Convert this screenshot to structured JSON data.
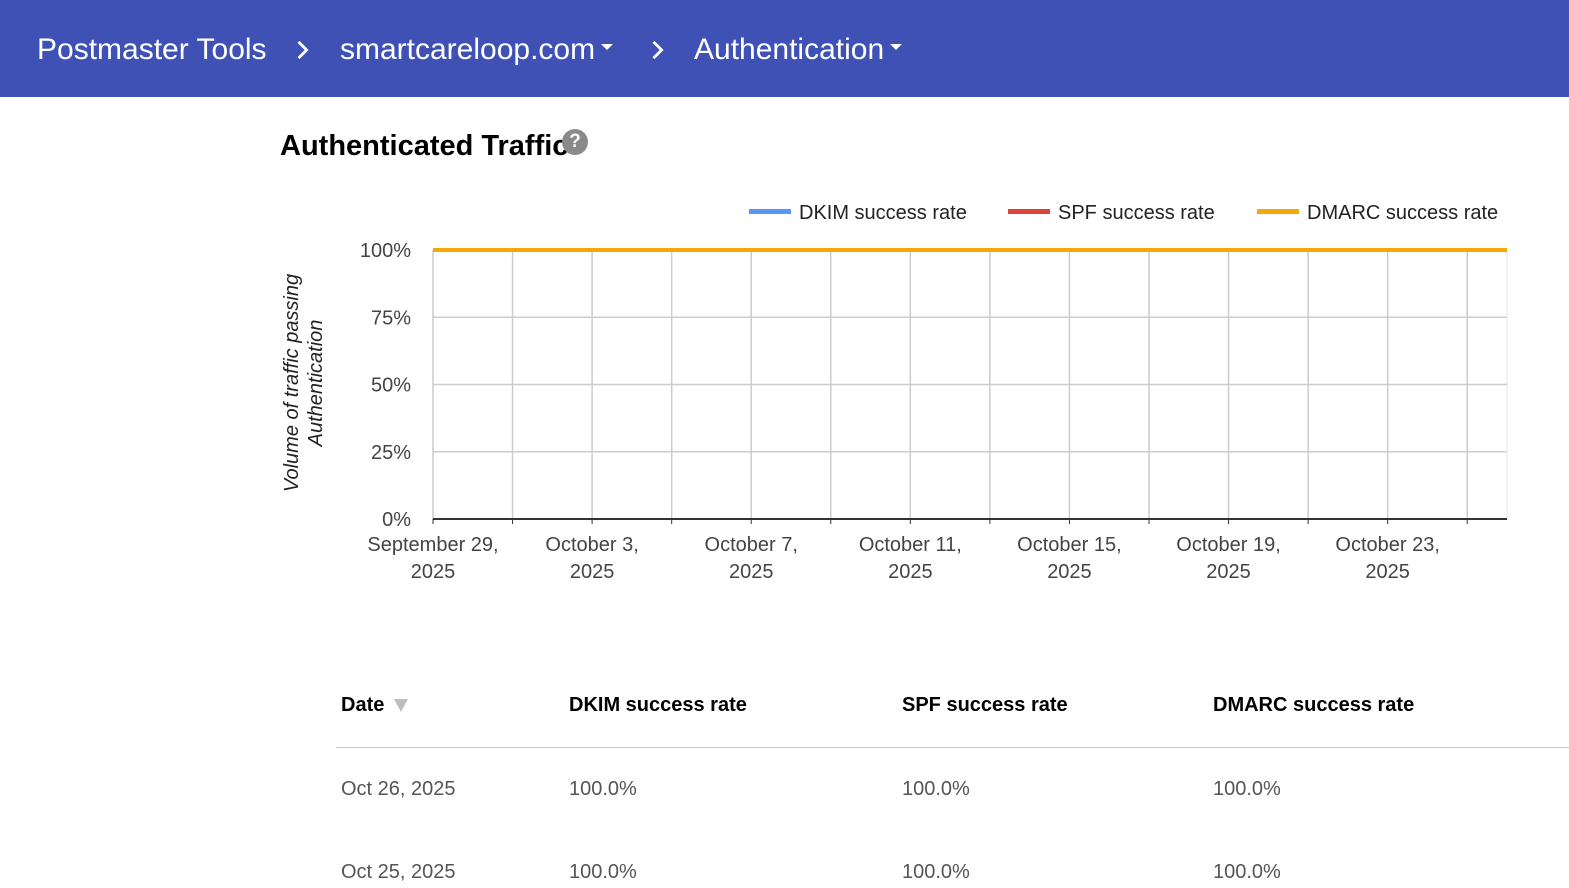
{
  "header": {
    "app_title": "Postmaster Tools",
    "domain": "smartcareloop.com",
    "section": "Authentication"
  },
  "panel": {
    "title": "Authenticated Traffic",
    "help_icon": "help-circle-icon"
  },
  "chart_data": {
    "type": "line",
    "title": "",
    "ylabel": "Volume of traffic passing Authentication",
    "xlabel": "",
    "x": [
      "2025-09-29",
      "2025-09-30",
      "2025-10-01",
      "2025-10-02",
      "2025-10-03",
      "2025-10-04",
      "2025-10-05",
      "2025-10-06",
      "2025-10-07",
      "2025-10-08",
      "2025-10-09",
      "2025-10-10",
      "2025-10-11",
      "2025-10-12",
      "2025-10-13",
      "2025-10-14",
      "2025-10-15",
      "2025-10-16",
      "2025-10-17",
      "2025-10-18",
      "2025-10-19",
      "2025-10-20",
      "2025-10-21",
      "2025-10-22",
      "2025-10-23",
      "2025-10-24",
      "2025-10-25",
      "2025-10-26"
    ],
    "x_tick_labels": [
      [
        "September 29,",
        "2025"
      ],
      [
        "October 3,",
        "2025"
      ],
      [
        "October 7,",
        "2025"
      ],
      [
        "October 11,",
        "2025"
      ],
      [
        "October 15,",
        "2025"
      ],
      [
        "October 19,",
        "2025"
      ],
      [
        "October 23,",
        "2025"
      ]
    ],
    "y_tick_labels": [
      "0%",
      "25%",
      "50%",
      "75%",
      "100%"
    ],
    "ylim": [
      0,
      100
    ],
    "grid": true,
    "legend_position": "top-right",
    "series": [
      {
        "name": "DKIM success rate",
        "color": "#5b95f9",
        "values": [
          100,
          100,
          100,
          100,
          100,
          100,
          100,
          100,
          100,
          100,
          100,
          100,
          100,
          100,
          100,
          100,
          100,
          100,
          100,
          100,
          100,
          100,
          100,
          100,
          100,
          100,
          100,
          100
        ]
      },
      {
        "name": "SPF success rate",
        "color": "#db4437",
        "values": [
          100,
          100,
          100,
          100,
          100,
          100,
          100,
          100,
          100,
          100,
          100,
          100,
          100,
          100,
          100,
          100,
          100,
          100,
          100,
          100,
          100,
          100,
          100,
          100,
          100,
          100,
          100,
          100
        ]
      },
      {
        "name": "DMARC success rate",
        "color": "#f4a807",
        "values": [
          100,
          100,
          100,
          100,
          100,
          100,
          100,
          100,
          100,
          100,
          100,
          100,
          100,
          100,
          100,
          100,
          100,
          100,
          100,
          100,
          100,
          100,
          100,
          100,
          100,
          100,
          100,
          100
        ]
      }
    ]
  },
  "table": {
    "columns": [
      "Date",
      "DKIM success rate",
      "SPF success rate",
      "DMARC success rate"
    ],
    "sort_column": "Date",
    "sort_icon": "sort-descending-icon",
    "rows": [
      [
        "Oct 26, 2025",
        "100.0%",
        "100.0%",
        "100.0%"
      ],
      [
        "Oct 25, 2025",
        "100.0%",
        "100.0%",
        "100.0%"
      ]
    ]
  }
}
